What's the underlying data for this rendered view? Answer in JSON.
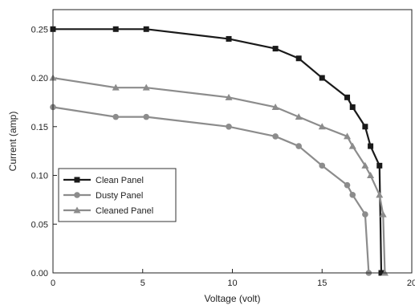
{
  "chart_data": {
    "type": "line",
    "title": "",
    "xlabel": "Voltage (volt)",
    "ylabel": "Current (amp)",
    "xlim": [
      0,
      20
    ],
    "ylim": [
      0,
      0.27
    ],
    "xticks": [
      0,
      5,
      10,
      15,
      20
    ],
    "xtick_labels": [
      "0",
      "5",
      "10",
      "15",
      "20"
    ],
    "yticks": [
      0,
      0.05,
      0.1,
      0.15,
      0.2,
      0.25
    ],
    "ytick_labels": [
      "0.00",
      "0.05",
      "0.10",
      "0.15",
      "0.20",
      "0.25"
    ],
    "grid": false,
    "legend_position": "lower-left",
    "series": [
      {
        "name": "Clean Panel",
        "color": "#1a1a1a",
        "marker": "square",
        "x": [
          0,
          3.5,
          5.2,
          9.8,
          12.4,
          13.7,
          15.0,
          16.4,
          16.7,
          17.4,
          17.7,
          18.2,
          18.3
        ],
        "y": [
          0.25,
          0.25,
          0.25,
          0.24,
          0.23,
          0.22,
          0.2,
          0.18,
          0.17,
          0.15,
          0.13,
          0.11,
          0
        ]
      },
      {
        "name": "Dusty Panel",
        "color": "#8c8c8c",
        "marker": "circle",
        "x": [
          0,
          3.5,
          5.2,
          9.8,
          12.4,
          13.7,
          15.0,
          16.4,
          16.7,
          17.4,
          17.6
        ],
        "y": [
          0.17,
          0.16,
          0.16,
          0.15,
          0.14,
          0.13,
          0.11,
          0.09,
          0.08,
          0.06,
          0
        ]
      },
      {
        "name": "Cleaned Panel",
        "color": "#8c8c8c",
        "marker": "triangle",
        "x": [
          0,
          3.5,
          5.2,
          9.8,
          12.4,
          13.7,
          15.0,
          16.4,
          16.7,
          17.4,
          17.7,
          18.2,
          18.4,
          18.5
        ],
        "y": [
          0.2,
          0.19,
          0.19,
          0.18,
          0.17,
          0.16,
          0.15,
          0.14,
          0.13,
          0.11,
          0.1,
          0.08,
          0.06,
          0
        ]
      }
    ]
  }
}
